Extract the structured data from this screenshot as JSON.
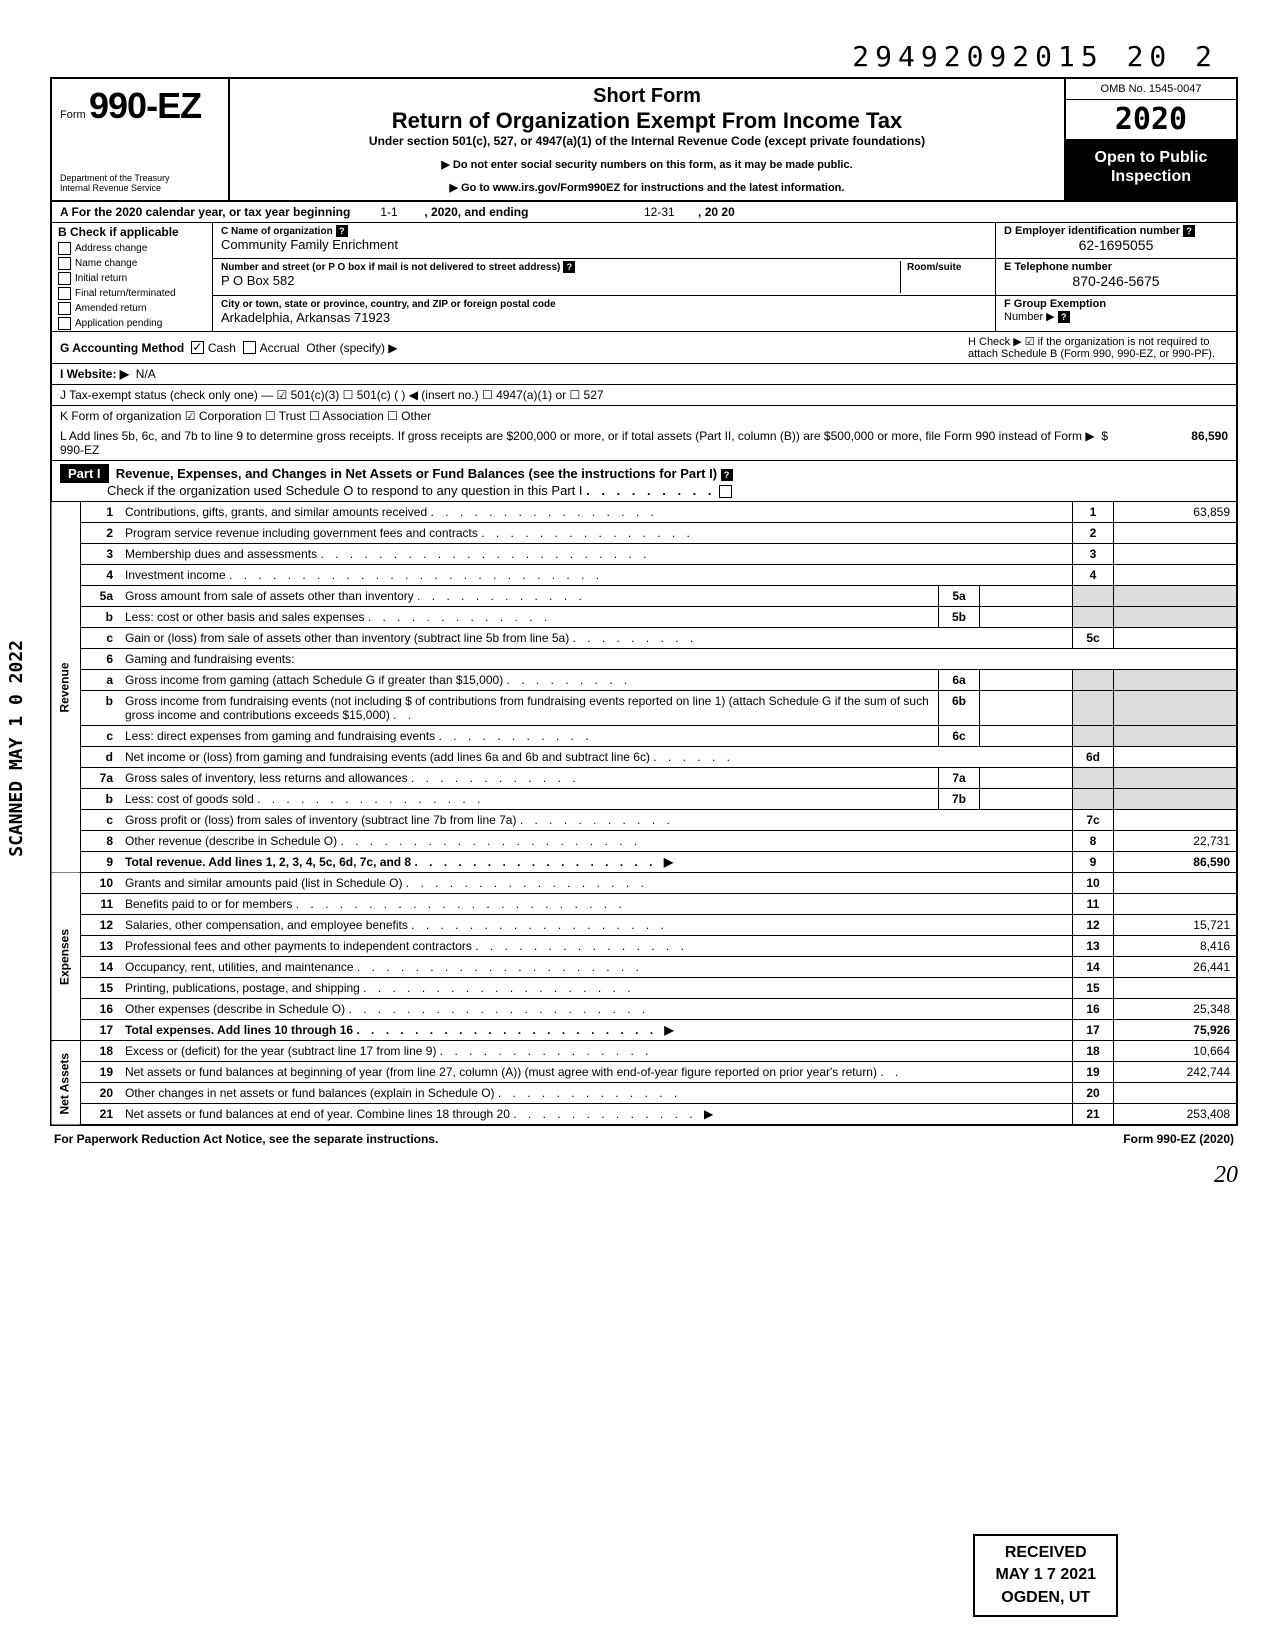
{
  "serial": "29492092015 20   2",
  "form": {
    "prefix": "Form",
    "number": "990-EZ",
    "dept1": "Department of the Treasury",
    "dept2": "Internal Revenue Service"
  },
  "title": {
    "short": "Short Form",
    "main": "Return of Organization Exempt From Income Tax",
    "sub": "Under section 501(c), 527, or 4947(a)(1) of the Internal Revenue Code (except private foundations)",
    "note1": "▶ Do not enter social security numbers on this form, as it may be made public.",
    "note2": "▶ Go to www.irs.gov/Form990EZ for instructions and the latest information."
  },
  "omb": "OMB No. 1545-0047",
  "taxyear": "2020",
  "open_public": "Open to Public Inspection",
  "line_a": {
    "text": "A For the 2020 calendar year, or tax year beginning",
    "begin": "1-1",
    "mid": ", 2020, and ending",
    "end_mo": "12-31",
    "end_yr": ", 20  20"
  },
  "b": {
    "header": "B Check if applicable",
    "items": [
      "Address change",
      "Name change",
      "Initial return",
      "Final return/terminated",
      "Amended return",
      "Application pending"
    ]
  },
  "c": {
    "label": "C Name of organization",
    "name": "Community Family Enrichment",
    "addr_label": "Number and street (or P O  box if mail is not delivered to street address)",
    "addr": "P O  Box 582",
    "city_label": "City or town, state or province, country, and ZIP or foreign postal code",
    "city": "Arkadelphia, Arkansas 71923",
    "room": "Room/suite"
  },
  "d": {
    "label": "D Employer identification number",
    "val": "62-1695055"
  },
  "e": {
    "label": "E Telephone number",
    "val": "870-246-5675"
  },
  "f": {
    "label": "F Group Exemption",
    "num": "Number ▶"
  },
  "g": {
    "label": "G Accounting Method",
    "cash": "Cash",
    "accrual": "Accrual",
    "other": "Other (specify) ▶"
  },
  "h": "H Check ▶ ☑ if the organization is not required to attach Schedule B (Form 990, 990-EZ, or 990-PF).",
  "i": {
    "label": "I  Website: ▶",
    "val": "N/A"
  },
  "j": "J Tax-exempt status (check only one) — ☑ 501(c)(3)   ☐ 501(c) (        ) ◀ (insert no.) ☐ 4947(a)(1) or   ☐ 527",
  "k": "K Form of organization   ☑ Corporation   ☐ Trust   ☐ Association   ☐ Other",
  "l": {
    "text": "L Add lines 5b, 6c, and 7b to line 9 to determine gross receipts. If gross receipts are $200,000 or more, or if total assets (Part II, column (B)) are $500,000 or more, file Form 990 instead of Form 990-EZ",
    "amt": "86,590"
  },
  "part1": {
    "label": "Part I",
    "title": "Revenue, Expenses, and Changes in Net Assets or Fund Balances (see the instructions for Part I)",
    "sub": "Check if the organization used Schedule O to respond to any question in this Part I"
  },
  "side_labels": {
    "rev": "Revenue",
    "exp": "Expenses",
    "na": "Net Assets"
  },
  "lines": [
    {
      "n": "1",
      "d": "Contributions, gifts, grants, and similar amounts received",
      "box": "1",
      "amt": "63,859"
    },
    {
      "n": "2",
      "d": "Program service revenue including government fees and contracts",
      "box": "2",
      "amt": ""
    },
    {
      "n": "3",
      "d": "Membership dues and assessments",
      "box": "3",
      "amt": ""
    },
    {
      "n": "4",
      "d": "Investment income",
      "box": "4",
      "amt": ""
    },
    {
      "n": "5a",
      "d": "Gross amount from sale of assets other than inventory",
      "ibox": "5a",
      "iamt": ""
    },
    {
      "n": "b",
      "d": "Less: cost or other basis and sales expenses",
      "ibox": "5b",
      "iamt": ""
    },
    {
      "n": "c",
      "d": "Gain or (loss) from sale of assets other than inventory (subtract line 5b from line 5a)",
      "box": "5c",
      "amt": ""
    },
    {
      "n": "6",
      "d": "Gaming and fundraising events:"
    },
    {
      "n": "a",
      "d": "Gross income from gaming (attach Schedule G if greater than $15,000)",
      "ibox": "6a",
      "iamt": ""
    },
    {
      "n": "b",
      "d": "Gross income from fundraising events (not including  $              of contributions from fundraising events reported on line 1) (attach Schedule G if the sum of such gross income and contributions exceeds $15,000)",
      "ibox": "6b",
      "iamt": ""
    },
    {
      "n": "c",
      "d": "Less: direct expenses from gaming and fundraising events",
      "ibox": "6c",
      "iamt": ""
    },
    {
      "n": "d",
      "d": "Net income or (loss) from gaming and fundraising events (add lines 6a and 6b and subtract line 6c)",
      "box": "6d",
      "amt": ""
    },
    {
      "n": "7a",
      "d": "Gross sales of inventory, less returns and allowances",
      "ibox": "7a",
      "iamt": ""
    },
    {
      "n": "b",
      "d": "Less: cost of goods sold",
      "ibox": "7b",
      "iamt": ""
    },
    {
      "n": "c",
      "d": "Gross profit or (loss) from sales of inventory (subtract line 7b from line 7a)",
      "box": "7c",
      "amt": ""
    },
    {
      "n": "8",
      "d": "Other revenue (describe in Schedule O)",
      "box": "8",
      "amt": "22,731"
    },
    {
      "n": "9",
      "d": "Total revenue. Add lines 1, 2, 3, 4, 5c, 6d, 7c, and 8",
      "box": "9",
      "amt": "86,590",
      "bold": true,
      "arrow": true
    },
    {
      "n": "10",
      "d": "Grants and similar amounts paid (list in Schedule O)",
      "box": "10",
      "amt": ""
    },
    {
      "n": "11",
      "d": "Benefits paid to or for members",
      "box": "11",
      "amt": ""
    },
    {
      "n": "12",
      "d": "Salaries, other compensation, and employee benefits",
      "box": "12",
      "amt": "15,721"
    },
    {
      "n": "13",
      "d": "Professional fees and other payments to independent contractors",
      "box": "13",
      "amt": "8,416"
    },
    {
      "n": "14",
      "d": "Occupancy, rent, utilities, and maintenance",
      "box": "14",
      "amt": "26,441"
    },
    {
      "n": "15",
      "d": "Printing, publications, postage, and shipping",
      "box": "15",
      "amt": ""
    },
    {
      "n": "16",
      "d": "Other expenses (describe in Schedule O)",
      "box": "16",
      "amt": "25,348"
    },
    {
      "n": "17",
      "d": "Total expenses. Add lines 10 through 16",
      "box": "17",
      "amt": "75,926",
      "bold": true,
      "arrow": true
    },
    {
      "n": "18",
      "d": "Excess or (deficit) for the year (subtract line 17 from line 9)",
      "box": "18",
      "amt": "10,664"
    },
    {
      "n": "19",
      "d": "Net assets or fund balances at beginning of year (from line 27, column (A)) (must agree with end-of-year figure reported on prior year's return)",
      "box": "19",
      "amt": "242,744"
    },
    {
      "n": "20",
      "d": "Other changes in net assets or fund balances (explain in Schedule O)",
      "box": "20",
      "amt": ""
    },
    {
      "n": "21",
      "d": "Net assets or fund balances at end of year. Combine lines 18 through 20",
      "box": "21",
      "amt": "253,408",
      "arrow": true
    }
  ],
  "footer": {
    "left": "For Paperwork Reduction Act Notice, see the separate instructions.",
    "right": "Form 990-EZ (2020)"
  },
  "stamp": {
    "l1": "RECEIVED",
    "l2": "MAY 1 7 2021",
    "l3": "OGDEN, UT"
  },
  "scanned": "SCANNED MAY 1 0 2022",
  "pagenum": "20"
}
